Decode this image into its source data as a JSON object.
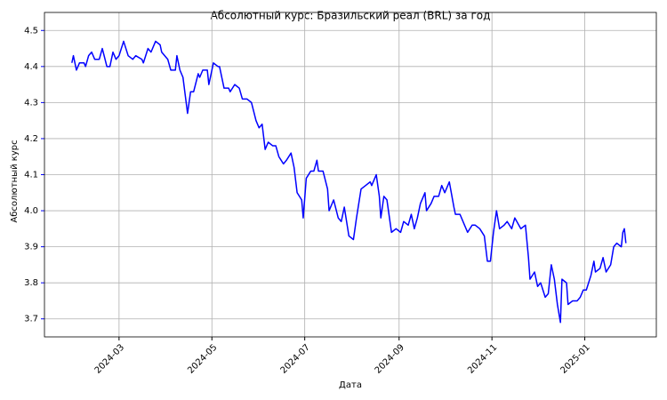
{
  "chart_data": {
    "type": "line",
    "title": "Абсолютный курс: Бразильский реал (BRL) за год",
    "x_label": "Дата",
    "y_label": "Абсолютный курс",
    "x": [
      "2024-01-30",
      "2024-01-31",
      "2024-02-02",
      "2024-02-04",
      "2024-02-07",
      "2024-02-08",
      "2024-02-10",
      "2024-02-12",
      "2024-02-14",
      "2024-02-17",
      "2024-02-19",
      "2024-02-22",
      "2024-02-24",
      "2024-02-26",
      "2024-02-28",
      "2024-03-01",
      "2024-03-04",
      "2024-03-07",
      "2024-03-10",
      "2024-03-12",
      "2024-03-16",
      "2024-03-17",
      "2024-03-20",
      "2024-03-22",
      "2024-03-25",
      "2024-03-28",
      "2024-03-29",
      "2024-04-02",
      "2024-04-04",
      "2024-04-07",
      "2024-04-08",
      "2024-04-10",
      "2024-04-12",
      "2024-04-15",
      "2024-04-17",
      "2024-04-19",
      "2024-04-22",
      "2024-04-23",
      "2024-04-25",
      "2024-04-28",
      "2024-04-29",
      "2024-05-02",
      "2024-05-05",
      "2024-05-06",
      "2024-05-09",
      "2024-05-12",
      "2024-05-13",
      "2024-05-16",
      "2024-05-19",
      "2024-05-21",
      "2024-05-24",
      "2024-05-27",
      "2024-05-30",
      "2024-06-01",
      "2024-06-03",
      "2024-06-05",
      "2024-06-07",
      "2024-06-10",
      "2024-06-12",
      "2024-06-14",
      "2024-06-17",
      "2024-06-19",
      "2024-06-22",
      "2024-06-24",
      "2024-06-26",
      "2024-06-29",
      "2024-06-30",
      "2024-07-02",
      "2024-07-05",
      "2024-07-07",
      "2024-07-09",
      "2024-07-10",
      "2024-07-13",
      "2024-07-16",
      "2024-07-17",
      "2024-07-20",
      "2024-07-23",
      "2024-07-25",
      "2024-07-27",
      "2024-07-30",
      "2024-08-02",
      "2024-08-04",
      "2024-08-07",
      "2024-08-10",
      "2024-08-13",
      "2024-08-14",
      "2024-08-17",
      "2024-08-19",
      "2024-08-20",
      "2024-08-22",
      "2024-08-24",
      "2024-08-27",
      "2024-08-30",
      "2024-09-02",
      "2024-09-04",
      "2024-09-07",
      "2024-09-09",
      "2024-09-11",
      "2024-09-13",
      "2024-09-15",
      "2024-09-18",
      "2024-09-19",
      "2024-09-22",
      "2024-09-24",
      "2024-09-27",
      "2024-09-29",
      "2024-10-01",
      "2024-10-04",
      "2024-10-07",
      "2024-10-08",
      "2024-10-11",
      "2024-10-14",
      "2024-10-16",
      "2024-10-19",
      "2024-10-21",
      "2024-10-24",
      "2024-10-27",
      "2024-10-29",
      "2024-10-31",
      "2024-11-02",
      "2024-11-04",
      "2024-11-06",
      "2024-11-09",
      "2024-11-11",
      "2024-11-14",
      "2024-11-16",
      "2024-11-20",
      "2024-11-23",
      "2024-11-25",
      "2024-11-26",
      "2024-11-29",
      "2024-12-01",
      "2024-12-03",
      "2024-12-06",
      "2024-12-08",
      "2024-12-10",
      "2024-12-12",
      "2024-12-14",
      "2024-12-16",
      "2024-12-17",
      "2024-12-20",
      "2024-12-21",
      "2024-12-24",
      "2024-12-27",
      "2024-12-29",
      "2024-12-31",
      "2025-01-02",
      "2025-01-05",
      "2025-01-07",
      "2025-01-08",
      "2025-01-11",
      "2025-01-13",
      "2025-01-15",
      "2025-01-18",
      "2025-01-20",
      "2025-01-22",
      "2025-01-25",
      "2025-01-26",
      "2025-01-27",
      "2025-01-28"
    ],
    "series": [
      {
        "name": "BRL",
        "color": "#0000ff",
        "values": [
          4.41,
          4.43,
          4.39,
          4.41,
          4.41,
          4.4,
          4.43,
          4.44,
          4.42,
          4.42,
          4.45,
          4.4,
          4.4,
          4.44,
          4.42,
          4.43,
          4.47,
          4.43,
          4.42,
          4.43,
          4.42,
          4.41,
          4.45,
          4.44,
          4.47,
          4.46,
          4.44,
          4.42,
          4.39,
          4.39,
          4.43,
          4.39,
          4.37,
          4.27,
          4.33,
          4.33,
          4.38,
          4.37,
          4.39,
          4.39,
          4.35,
          4.41,
          4.4,
          4.4,
          4.34,
          4.34,
          4.33,
          4.35,
          4.34,
          4.31,
          4.31,
          4.3,
          4.25,
          4.23,
          4.24,
          4.17,
          4.19,
          4.18,
          4.18,
          4.15,
          4.13,
          4.14,
          4.16,
          4.12,
          4.05,
          4.03,
          3.98,
          4.09,
          4.11,
          4.11,
          4.14,
          4.11,
          4.11,
          4.06,
          4.0,
          4.03,
          3.98,
          3.97,
          4.01,
          3.93,
          3.92,
          3.98,
          4.06,
          4.07,
          4.08,
          4.07,
          4.1,
          4.04,
          3.98,
          4.04,
          4.03,
          3.94,
          3.95,
          3.94,
          3.97,
          3.96,
          3.99,
          3.95,
          3.98,
          4.02,
          4.05,
          4.0,
          4.02,
          4.04,
          4.04,
          4.07,
          4.05,
          4.08,
          4.01,
          3.99,
          3.99,
          3.96,
          3.94,
          3.96,
          3.96,
          3.95,
          3.93,
          3.86,
          3.86,
          3.94,
          4.0,
          3.95,
          3.96,
          3.97,
          3.95,
          3.98,
          3.95,
          3.96,
          3.87,
          3.81,
          3.83,
          3.79,
          3.8,
          3.76,
          3.77,
          3.85,
          3.81,
          3.74,
          3.69,
          3.81,
          3.8,
          3.74,
          3.75,
          3.75,
          3.76,
          3.78,
          3.78,
          3.82,
          3.86,
          3.83,
          3.84,
          3.87,
          3.83,
          3.85,
          3.9,
          3.91,
          3.9,
          3.94,
          3.95,
          3.91
        ]
      }
    ],
    "xlim": [
      "2024-01-12",
      "2025-02-17"
    ],
    "xticks": [
      {
        "value": "2024-03-01",
        "label": "2024-03"
      },
      {
        "value": "2024-05-01",
        "label": "2024-05"
      },
      {
        "value": "2024-07-01",
        "label": "2024-07"
      },
      {
        "value": "2024-09-01",
        "label": "2024-09"
      },
      {
        "value": "2024-11-01",
        "label": "2024-11"
      },
      {
        "value": "2025-01-01",
        "label": "2025-01"
      }
    ],
    "ylim": [
      3.65,
      4.55
    ],
    "yticks": [
      3.7,
      3.8,
      3.9,
      {
        "value": 4,
        "label": "4.0"
      },
      4.1,
      4.2,
      4.3,
      4.4,
      4.5
    ],
    "grid": true,
    "y_axis_color": "#0000ff"
  }
}
